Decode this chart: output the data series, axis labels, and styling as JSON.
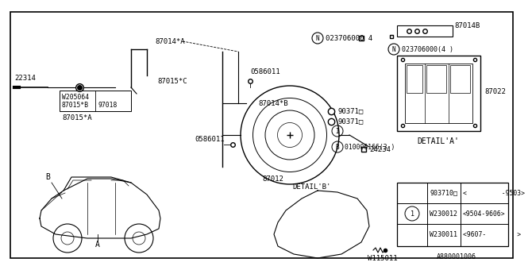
{
  "bg_color": "#ffffff",
  "diagram_id": "A880001006",
  "table": {
    "rows": [
      [
        "903710□",
        "<         -9503>"
      ],
      [
        "W230012",
        "<9504-9606>"
      ],
      [
        "W230011",
        "<9607-        >"
      ]
    ]
  }
}
